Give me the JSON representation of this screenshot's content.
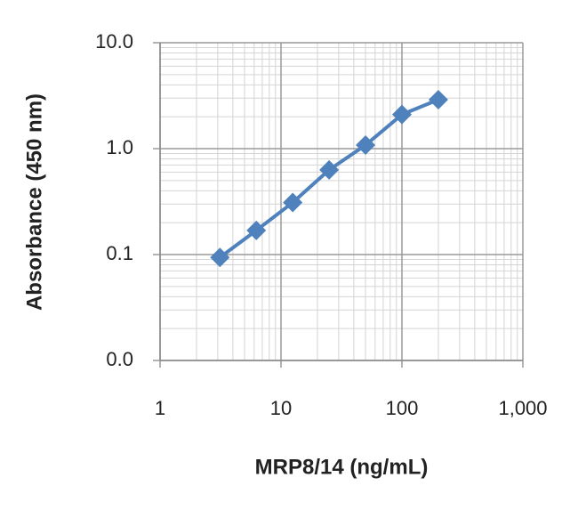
{
  "chart_data": {
    "type": "line",
    "x_label": "MRP8/14 (ng/mL)",
    "y_label": "Absorbance (450 nm)",
    "x": [
      3.125,
      6.25,
      12.5,
      25,
      50,
      100,
      200
    ],
    "series": [
      {
        "name": "Absorbance",
        "color": "#4f81bd",
        "values": [
          0.094,
          0.169,
          0.31,
          0.63,
          1.08,
          2.1,
          2.9
        ]
      }
    ],
    "xlim": [
      1,
      1000
    ],
    "ylim": [
      0.01,
      10
    ],
    "xticks": [
      1,
      10,
      100,
      {
        "value": 1000,
        "label": "1,000"
      }
    ],
    "yticks": [
      {
        "value": 0.01,
        "label": "0.0"
      },
      {
        "value": 0.1,
        "label": "0.1"
      },
      {
        "value": 1,
        "label": "1.0"
      },
      {
        "value": 10,
        "label": "10.0"
      }
    ],
    "xlog": true,
    "ylog": true,
    "grid": true,
    "minor_grid": true
  }
}
